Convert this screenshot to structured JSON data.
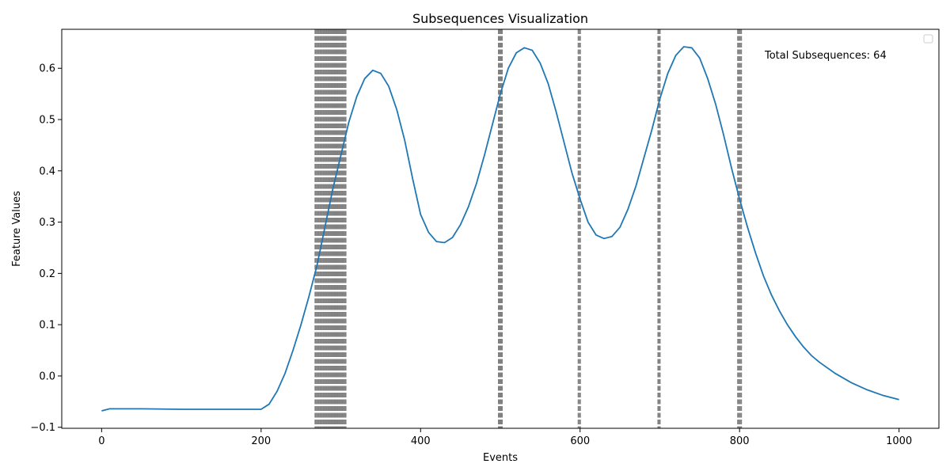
{
  "chart_data": {
    "type": "line",
    "title": "Subsequences Visualization",
    "xlabel": "Events",
    "ylabel": "Feature Values",
    "xlim": [
      -50,
      1050
    ],
    "ylim": [
      -0.102,
      0.676
    ],
    "xticks": [
      0,
      200,
      400,
      600,
      800,
      1000
    ],
    "yticks": [
      -0.1,
      0.0,
      0.1,
      0.2,
      0.3,
      0.4,
      0.5,
      0.6
    ],
    "xtick_labels": [
      "0",
      "200",
      "400",
      "600",
      "800",
      "1000"
    ],
    "ytick_labels": [
      "−0.1",
      "0.0",
      "0.1",
      "0.2",
      "0.3",
      "0.4",
      "0.5",
      "0.6"
    ],
    "annotation": "Total Subsequences: 64",
    "legend": {
      "placement": "top-right",
      "entries": []
    },
    "grid": false,
    "series": [
      {
        "color": "#1f77b4",
        "x": [
          0,
          10,
          50,
          100,
          150,
          200,
          210,
          220,
          230,
          240,
          250,
          260,
          270,
          280,
          290,
          300,
          310,
          320,
          330,
          340,
          350,
          360,
          370,
          380,
          390,
          400,
          410,
          420,
          430,
          440,
          450,
          460,
          470,
          480,
          490,
          500,
          510,
          520,
          530,
          540,
          550,
          560,
          570,
          580,
          590,
          600,
          610,
          620,
          630,
          640,
          650,
          660,
          670,
          680,
          690,
          700,
          710,
          720,
          730,
          740,
          750,
          760,
          770,
          780,
          790,
          800,
          810,
          820,
          830,
          840,
          850,
          860,
          870,
          880,
          890,
          900,
          920,
          940,
          960,
          980,
          1000
        ],
        "y": [
          -0.068,
          -0.064,
          -0.064,
          -0.065,
          -0.065,
          -0.065,
          -0.055,
          -0.03,
          0.005,
          0.05,
          0.1,
          0.155,
          0.215,
          0.29,
          0.365,
          0.43,
          0.495,
          0.545,
          0.58,
          0.596,
          0.59,
          0.565,
          0.52,
          0.46,
          0.385,
          0.315,
          0.28,
          0.262,
          0.26,
          0.27,
          0.295,
          0.33,
          0.375,
          0.43,
          0.49,
          0.55,
          0.6,
          0.63,
          0.64,
          0.635,
          0.61,
          0.57,
          0.515,
          0.455,
          0.395,
          0.345,
          0.3,
          0.275,
          0.268,
          0.272,
          0.29,
          0.325,
          0.37,
          0.425,
          0.48,
          0.54,
          0.59,
          0.625,
          0.642,
          0.64,
          0.62,
          0.58,
          0.53,
          0.47,
          0.405,
          0.345,
          0.29,
          0.24,
          0.195,
          0.158,
          0.127,
          0.1,
          0.077,
          0.057,
          0.04,
          0.027,
          0.005,
          -0.013,
          -0.027,
          -0.038,
          -0.046
        ]
      }
    ],
    "subsequence_boundaries": {
      "color": "#808080",
      "style": "dashed",
      "x": [
        268,
        270,
        272,
        274,
        276,
        278,
        280,
        282,
        284,
        286,
        288,
        290,
        292,
        294,
        296,
        298,
        300,
        302,
        304,
        306,
        498,
        500,
        502,
        598,
        600,
        698,
        700,
        798,
        800,
        802
      ]
    }
  }
}
